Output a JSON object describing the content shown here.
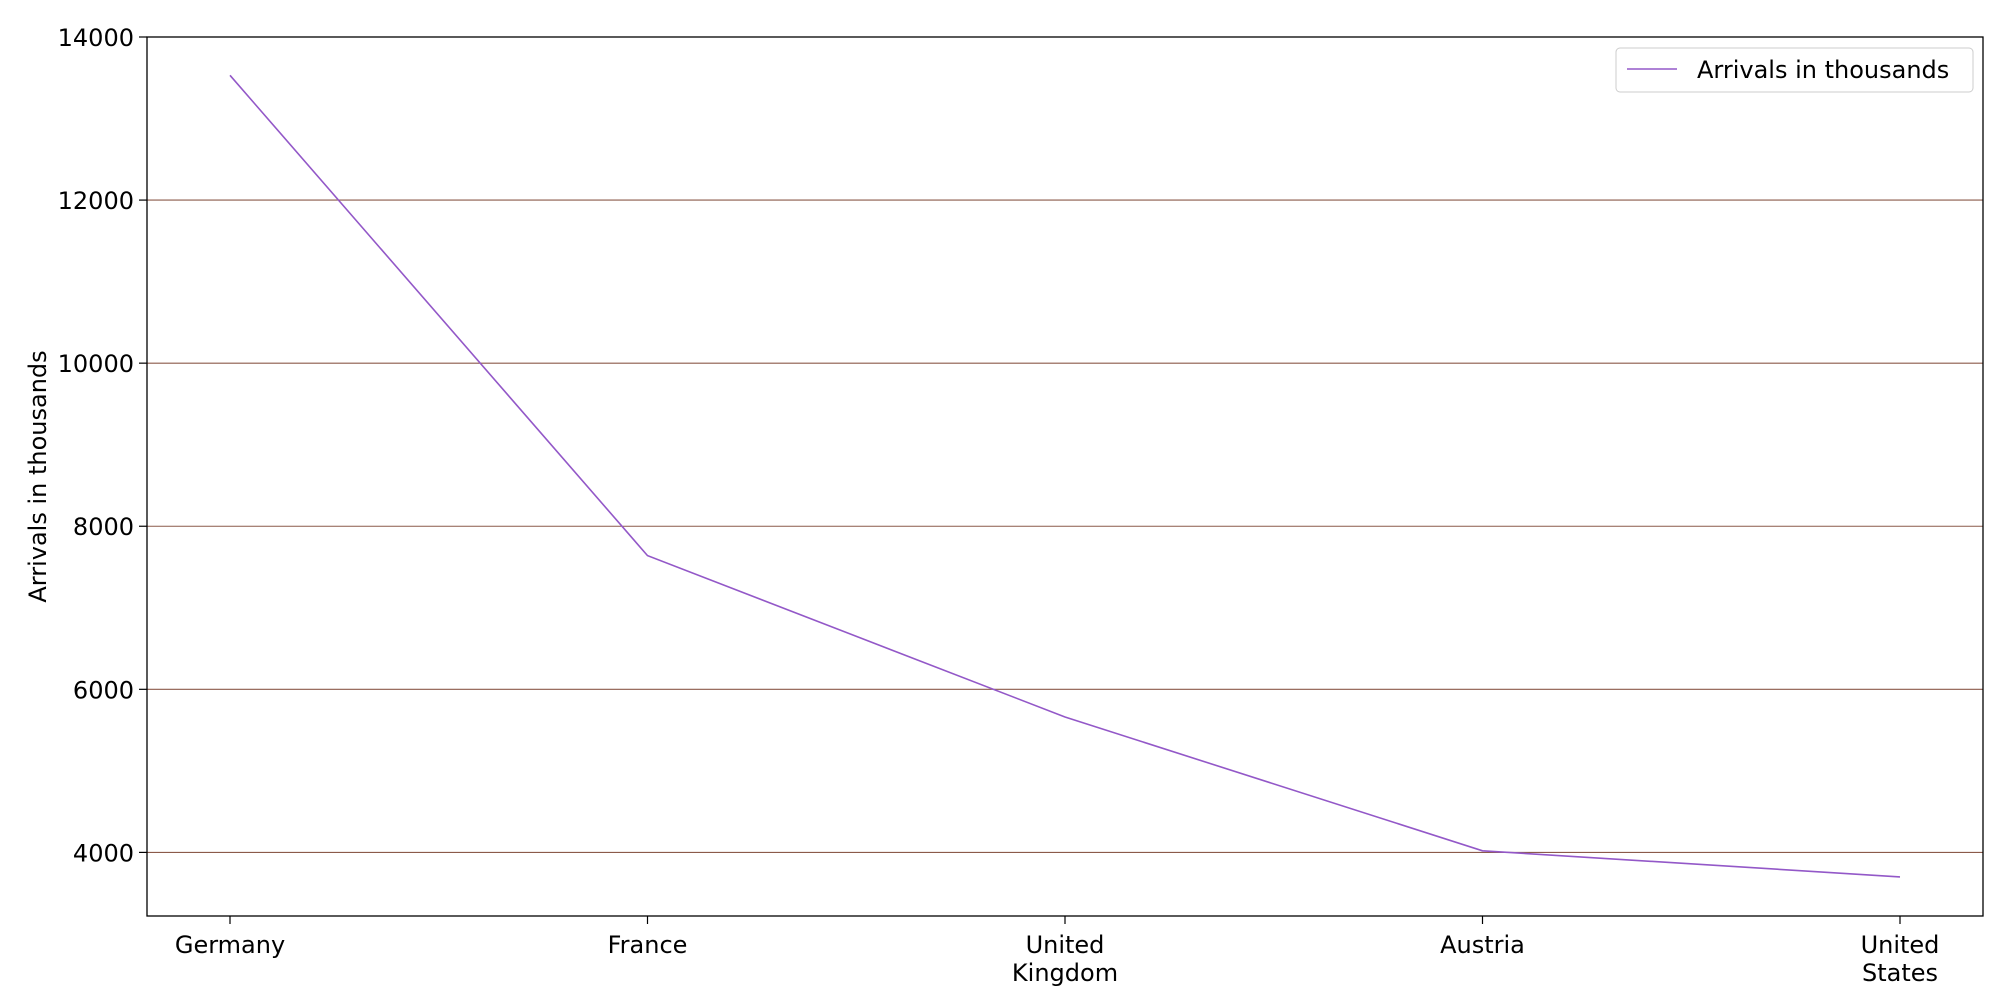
{
  "chart_data": {
    "type": "line",
    "categories": [
      "Germany",
      "France",
      "United Kingdom",
      "Austria",
      "United States"
    ],
    "category_label_lines": [
      [
        "Germany"
      ],
      [
        "France"
      ],
      [
        "United",
        "Kingdom"
      ],
      [
        "Austria"
      ],
      [
        "United",
        "States"
      ]
    ],
    "series": [
      {
        "name": "Arrivals in thousands",
        "values": [
          13530,
          7640,
          5660,
          4020,
          3700
        ]
      }
    ],
    "ylabel": "Arrivals in thousands",
    "ylim": [
      3220,
      14000
    ],
    "yticks": [
      4000,
      6000,
      8000,
      10000,
      12000,
      14000
    ],
    "grid": "horizontal",
    "legend_position": "top-right",
    "colors": {
      "line": "#9358c8",
      "grid": "#8b5a4a",
      "axes": "#000000"
    }
  }
}
